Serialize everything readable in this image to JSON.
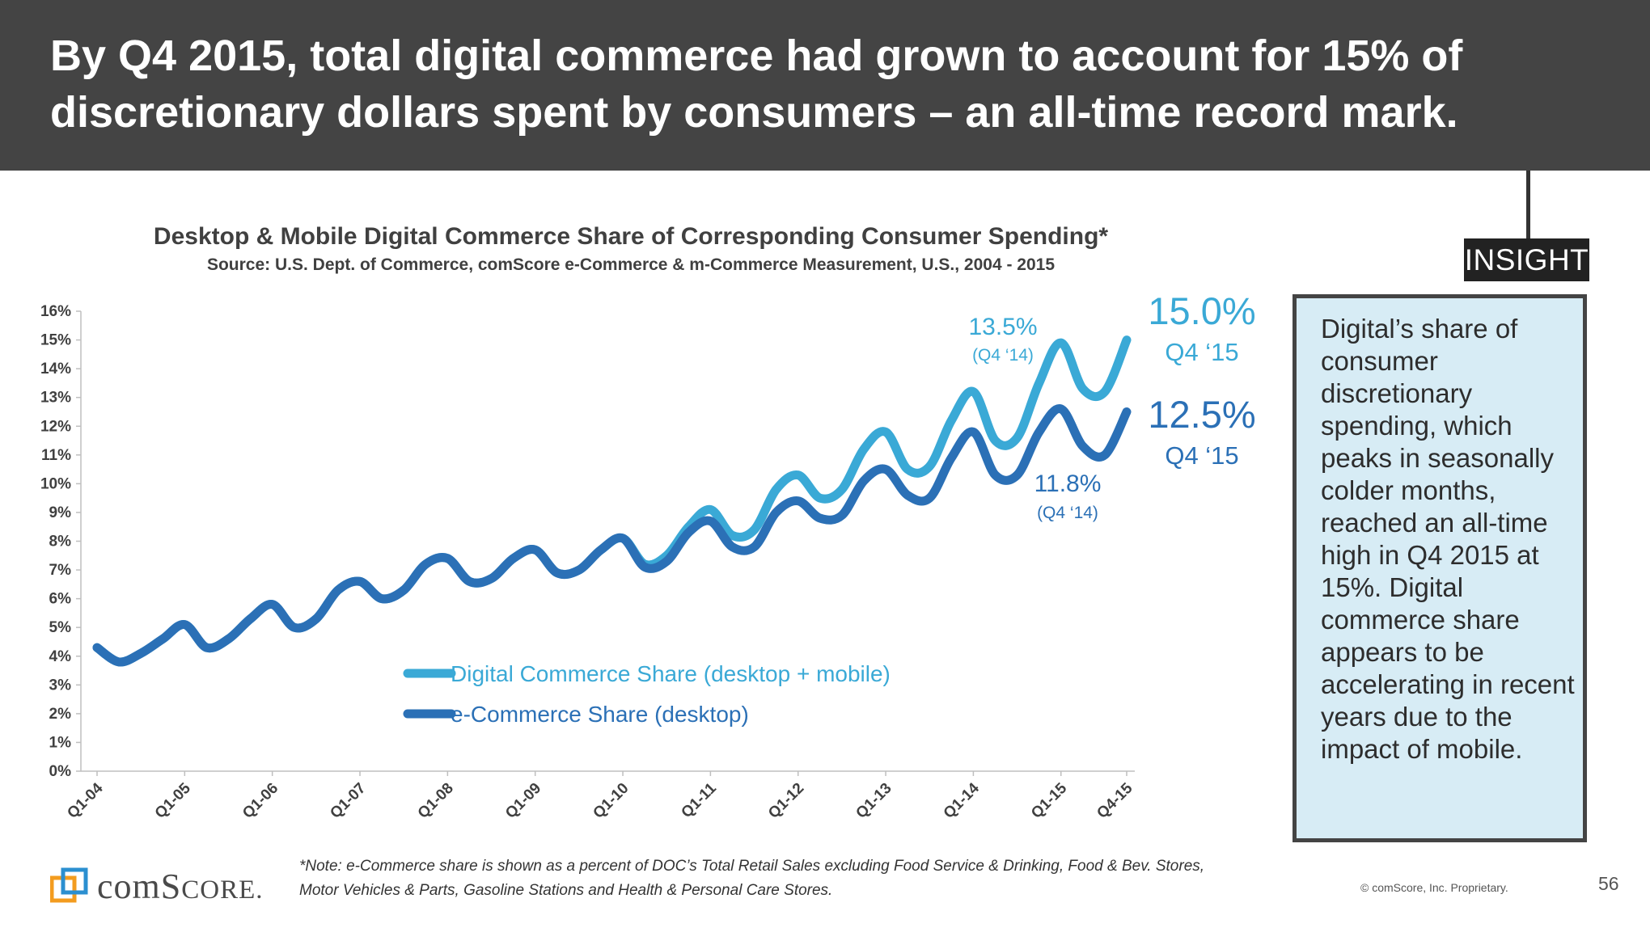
{
  "header": {
    "title": "By Q4 2015, total digital commerce had grown to account for 15% of discretionary dollars spent by consumers – an all-time record mark."
  },
  "insight": {
    "tag": "INSIGHT",
    "text": "Digital’s share of consumer discretionary spending, which peaks in seasonally colder months, reached an all-time high in Q4 2015 at 15%. Digital commerce share appears to be accelerating in recent years due to the impact of mobile."
  },
  "footer": {
    "note_line1": "*Note: e-Commerce share is shown as a percent of DOC’s Total Retail Sales excluding Food Service & Drinking, Food & Bev. Stores,",
    "note_line2": "Motor Vehicles & Parts, Gasoline Stations and Health & Personal Care Stores.",
    "copyright": "© comScore, Inc. Proprietary.",
    "page_number": "56",
    "logo_text_prefix": "com",
    "logo_text_s": "S",
    "logo_text_rest": "CORE",
    "logo_text_dot": "."
  },
  "colors": {
    "digital": "#3aa9d6",
    "ecommerce": "#2b70b6",
    "header_bg": "#444444",
    "insight_bg": "#d7ecf5"
  },
  "chart_data": {
    "type": "line",
    "title": "Desktop & Mobile Digital Commerce Share of Corresponding Consumer Spending*",
    "subtitle": "Source: U.S. Dept. of Commerce, comScore e-Commerce & m-Commerce Measurement, U.S., 2004 - 2015",
    "xlabel": "",
    "ylabel": "",
    "ylim": [
      0,
      16
    ],
    "y_ticks": [
      "0%",
      "1%",
      "2%",
      "3%",
      "4%",
      "5%",
      "6%",
      "7%",
      "8%",
      "9%",
      "10%",
      "11%",
      "12%",
      "13%",
      "14%",
      "15%",
      "16%"
    ],
    "x_tick_labels": [
      "Q1-04",
      "Q1-05",
      "Q1-06",
      "Q1-07",
      "Q1-08",
      "Q1-09",
      "Q1-10",
      "Q1-11",
      "Q1-12",
      "Q1-13",
      "Q1-14",
      "Q1-15",
      "Q4-15"
    ],
    "x_tick_indices": [
      0,
      4,
      8,
      12,
      16,
      20,
      24,
      28,
      32,
      36,
      40,
      44,
      47
    ],
    "categories": [
      "Q1-04",
      "Q2-04",
      "Q3-04",
      "Q4-04",
      "Q1-05",
      "Q2-05",
      "Q3-05",
      "Q4-05",
      "Q1-06",
      "Q2-06",
      "Q3-06",
      "Q4-06",
      "Q1-07",
      "Q2-07",
      "Q3-07",
      "Q4-07",
      "Q1-08",
      "Q2-08",
      "Q3-08",
      "Q4-08",
      "Q1-09",
      "Q2-09",
      "Q3-09",
      "Q4-09",
      "Q1-10",
      "Q2-10",
      "Q3-10",
      "Q4-10",
      "Q1-11",
      "Q2-11",
      "Q3-11",
      "Q4-11",
      "Q1-12",
      "Q2-12",
      "Q3-12",
      "Q4-12",
      "Q1-13",
      "Q2-13",
      "Q3-13",
      "Q4-13",
      "Q1-14",
      "Q2-14",
      "Q3-14",
      "Q4-14",
      "Q1-15",
      "Q2-15",
      "Q3-15",
      "Q4-15"
    ],
    "series": [
      {
        "name": "e-Commerce Share (desktop)",
        "values": [
          4.3,
          3.8,
          4.1,
          4.6,
          5.1,
          4.3,
          4.6,
          5.3,
          5.8,
          5.0,
          5.3,
          6.3,
          6.6,
          6.0,
          6.3,
          7.2,
          7.4,
          6.6,
          6.7,
          7.4,
          7.7,
          6.9,
          7.0,
          7.7,
          8.1,
          7.1,
          7.3,
          8.3,
          8.7,
          7.8,
          7.8,
          9.0,
          9.4,
          8.8,
          8.9,
          10.1,
          10.5,
          9.6,
          9.5,
          10.9,
          11.8,
          10.3,
          10.3,
          11.8,
          12.6,
          11.3,
          11.0,
          12.5
        ]
      },
      {
        "name": "Digital Commerce Share (desktop + mobile)",
        "values": [
          4.3,
          3.8,
          4.1,
          4.6,
          5.1,
          4.3,
          4.6,
          5.3,
          5.8,
          5.0,
          5.3,
          6.3,
          6.6,
          6.0,
          6.3,
          7.2,
          7.4,
          6.6,
          6.7,
          7.4,
          7.7,
          6.9,
          7.0,
          7.7,
          8.1,
          7.2,
          7.5,
          8.5,
          9.1,
          8.2,
          8.4,
          9.8,
          10.3,
          9.5,
          9.8,
          11.2,
          11.8,
          10.5,
          10.6,
          12.2,
          13.2,
          11.5,
          11.6,
          13.5,
          14.9,
          13.3,
          13.2,
          15.0
        ]
      }
    ],
    "legend": [
      {
        "label": "Digital Commerce Share (desktop + mobile)"
      },
      {
        "label": "e-Commerce Share (desktop)"
      }
    ],
    "legend_position": "center",
    "annotations": {
      "digital_q4_14_value": "13.5%",
      "digital_q4_14_label": "(Q4 ‘14)",
      "ecom_q4_14_value": "11.8%",
      "ecom_q4_14_label": "(Q4 ‘14)",
      "digital_q4_15_value": "15.0%",
      "digital_q4_15_label": "Q4 ‘15",
      "ecom_q4_15_value": "12.5%",
      "ecom_q4_15_label": "Q4 ‘15"
    }
  }
}
